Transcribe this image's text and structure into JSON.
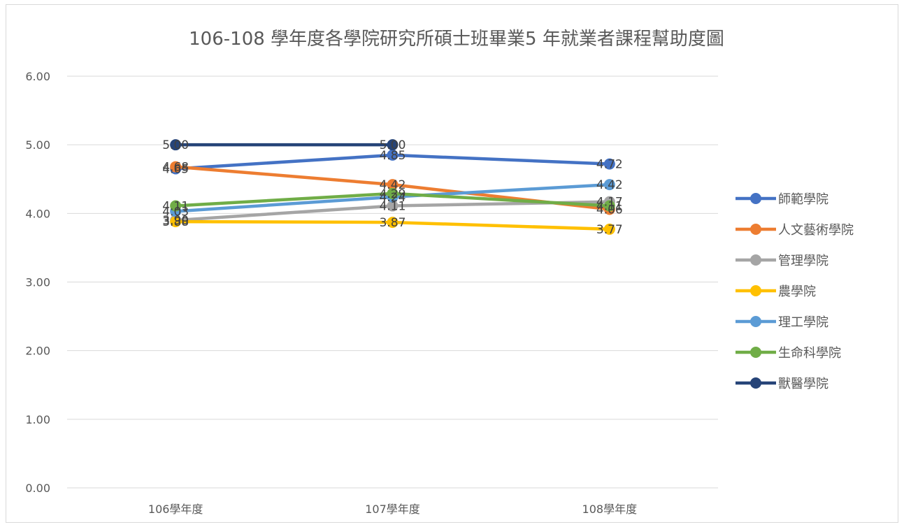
{
  "chart_data": {
    "type": "line",
    "title": "106-108 學年度各學院研究所碩士班畢業5 年就業者課程幫助度圖",
    "categories": [
      "106學年度",
      "107學年度",
      "108學年度"
    ],
    "ylim": [
      0,
      6
    ],
    "yticks": [
      "0.00",
      "1.00",
      "2.00",
      "3.00",
      "4.00",
      "5.00",
      "6.00"
    ],
    "grid": true,
    "legend_position": "right",
    "series": [
      {
        "name": "師範學院",
        "values": [
          4.65,
          4.85,
          4.72
        ],
        "labels": [
          "4.65",
          "4.85",
          "4.72"
        ],
        "color": "#4472C4"
      },
      {
        "name": "人文藝術學院",
        "values": [
          4.68,
          4.42,
          4.06
        ],
        "labels": [
          "4.68",
          "4.42",
          "4.06"
        ],
        "color": "#ED7D31"
      },
      {
        "name": "管理學院",
        "values": [
          3.9,
          4.11,
          4.17
        ],
        "labels": [
          "3.90",
          "4.11",
          "4.17"
        ],
        "color": "#A5A5A5"
      },
      {
        "name": "農學院",
        "values": [
          3.88,
          3.87,
          3.77
        ],
        "labels": [
          "3.88",
          "3.87",
          "3.77"
        ],
        "color": "#FFC000"
      },
      {
        "name": "理工學院",
        "values": [
          4.03,
          4.24,
          4.42
        ],
        "labels": [
          "4.03",
          "4.24",
          "4.42"
        ],
        "color": "#5B9BD5"
      },
      {
        "name": "生命科學院",
        "values": [
          4.11,
          4.29,
          4.11
        ],
        "labels": [
          "4.11",
          "4.29",
          "4.11"
        ],
        "color": "#70AD47"
      },
      {
        "name": "獸醫學院",
        "values": [
          5.0,
          5.0,
          null
        ],
        "labels": [
          "5.00",
          "5.00",
          null
        ],
        "color": "#264478"
      }
    ]
  }
}
